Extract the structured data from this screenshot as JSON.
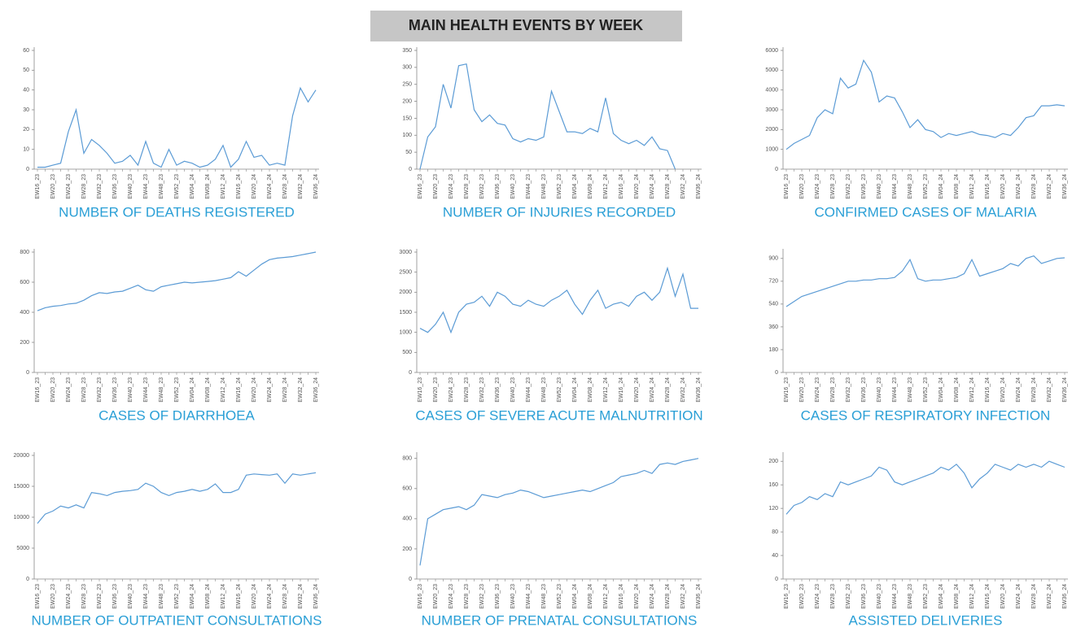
{
  "title": "MAIN HEALTH EVENTS BY WEEK",
  "chart_data": [
    {
      "type": "line",
      "title": "NUMBER OF DEATHS REGISTERED",
      "color": "#5b9bd5",
      "categories": [
        "EW16_23",
        null,
        "EW20_23",
        null,
        "EW24_23",
        null,
        "EW28_23",
        null,
        "EW32_23",
        null,
        "EW36_23",
        null,
        "EW40_23",
        null,
        "EW44_23",
        null,
        "EW48_23",
        null,
        "EW52_23",
        null,
        "EW04_24",
        null,
        "EW08_24",
        null,
        "EW12_24",
        null,
        "EW16_24",
        null,
        "EW20_24",
        null,
        "EW24_24",
        null,
        "EW28_24",
        null,
        "EW32_24",
        null,
        "EW36_24"
      ],
      "values": [
        1,
        1,
        2,
        3,
        19,
        30,
        8,
        15,
        12,
        8,
        3,
        4,
        7,
        2,
        14,
        3,
        1,
        10,
        2,
        4,
        3,
        1,
        2,
        5,
        12,
        1,
        5,
        14,
        6,
        7,
        2,
        3,
        2,
        27,
        41,
        34,
        40
      ],
      "ylim": [
        0,
        60
      ],
      "yticks": [
        0,
        10,
        20,
        30,
        40,
        50,
        60
      ]
    },
    {
      "type": "line",
      "title": "NUMBER OF INJURIES RECORDED",
      "color": "#5b9bd5",
      "categories": [
        "EW16_23",
        null,
        "EW20_23",
        null,
        "EW24_23",
        null,
        "EW28_23",
        null,
        "EW32_23",
        null,
        "EW36_23",
        null,
        "EW40_23",
        null,
        "EW44_23",
        null,
        "EW48_23",
        null,
        "EW52_23",
        null,
        "EW04_24",
        null,
        "EW08_24",
        null,
        "EW12_24",
        null,
        "EW16_24",
        null,
        "EW20_24",
        null,
        "EW24_24",
        null,
        "EW28_24",
        null,
        "EW32_24",
        null,
        "EW36_24"
      ],
      "values": [
        0,
        95,
        125,
        250,
        180,
        305,
        310,
        175,
        140,
        160,
        135,
        130,
        90,
        80,
        90,
        85,
        95,
        230,
        170,
        110,
        110,
        105,
        120,
        110,
        210,
        105,
        85,
        75,
        85,
        70,
        95,
        60,
        55,
        0,
        null,
        null,
        null
      ],
      "ylim": [
        0,
        350
      ],
      "yticks": [
        0,
        50,
        100,
        150,
        200,
        250,
        300,
        350
      ]
    },
    {
      "type": "line",
      "title": "CONFIRMED CASES OF MALARIA",
      "color": "#5b9bd5",
      "categories": [
        "EW16_23",
        null,
        "EW20_23",
        null,
        "EW24_23",
        null,
        "EW28_23",
        null,
        "EW32_23",
        null,
        "EW36_23",
        null,
        "EW40_23",
        null,
        "EW44_23",
        null,
        "EW48_23",
        null,
        "EW52_23",
        null,
        "EW04_24",
        null,
        "EW08_24",
        null,
        "EW12_24",
        null,
        "EW16_24",
        null,
        "EW20_24",
        null,
        "EW24_24",
        null,
        "EW28_24",
        null,
        "EW32_24",
        null,
        "EW36_24"
      ],
      "values": [
        1000,
        1300,
        1500,
        1700,
        2600,
        3000,
        2800,
        4600,
        4100,
        4300,
        5500,
        4900,
        3400,
        3700,
        3600,
        2900,
        2100,
        2500,
        2000,
        1900,
        1600,
        1800,
        1700,
        1800,
        1900,
        1750,
        1700,
        1600,
        1800,
        1700,
        2100,
        2600,
        2700,
        3200,
        3200,
        3250,
        3200
      ],
      "ylim": [
        0,
        6000
      ],
      "yticks": [
        0,
        1000,
        2000,
        3000,
        4000,
        5000,
        6000
      ]
    },
    {
      "type": "line",
      "title": "CASES OF DIARRHOEA",
      "color": "#5b9bd5",
      "categories": [
        "EW16_23",
        null,
        "EW20_23",
        null,
        "EW24_23",
        null,
        "EW28_23",
        null,
        "EW32_23",
        null,
        "EW36_23",
        null,
        "EW40_23",
        null,
        "EW44_23",
        null,
        "EW48_23",
        null,
        "EW52_23",
        null,
        "EW04_24",
        null,
        "EW08_24",
        null,
        "EW12_24",
        null,
        "EW16_24",
        null,
        "EW20_24",
        null,
        "EW24_24",
        null,
        "EW28_24",
        null,
        "EW32_24",
        null,
        "EW36_24"
      ],
      "values": [
        410,
        430,
        440,
        445,
        455,
        460,
        480,
        510,
        530,
        525,
        535,
        540,
        560,
        580,
        550,
        540,
        570,
        580,
        590,
        600,
        595,
        600,
        605,
        610,
        620,
        630,
        670,
        640,
        680,
        720,
        750,
        760,
        765,
        770,
        780,
        790,
        800
      ],
      "ylim": [
        0,
        800
      ],
      "yticks": [
        0,
        200,
        400,
        600,
        800
      ]
    },
    {
      "type": "line",
      "title": "CASES OF SEVERE ACUTE MALNUTRITION",
      "color": "#5b9bd5",
      "categories": [
        "EW16_23",
        null,
        "EW20_23",
        null,
        "EW24_23",
        null,
        "EW28_23",
        null,
        "EW32_23",
        null,
        "EW36_23",
        null,
        "EW40_23",
        null,
        "EW44_23",
        null,
        "EW48_23",
        null,
        "EW52_23",
        null,
        "EW04_24",
        null,
        "EW08_24",
        null,
        "EW12_24",
        null,
        "EW16_24",
        null,
        "EW20_24",
        null,
        "EW24_24",
        null,
        "EW28_24",
        null,
        "EW32_24",
        null,
        "EW36_24"
      ],
      "values": [
        1100,
        1000,
        1200,
        1500,
        1000,
        1500,
        1700,
        1750,
        1900,
        1650,
        2000,
        1900,
        1700,
        1650,
        1800,
        1700,
        1650,
        1800,
        1900,
        2050,
        1700,
        1450,
        1800,
        2050,
        1600,
        1700,
        1750,
        1650,
        1900,
        2000,
        1800,
        2000,
        2600,
        1900,
        2450,
        1600,
        1600
      ],
      "ylim": [
        0,
        3000
      ],
      "yticks": [
        0,
        500,
        1000,
        1500,
        2000,
        2500,
        3000
      ]
    },
    {
      "type": "line",
      "title": "CASES OF RESPIRATORY INFECTION",
      "color": "#5b9bd5",
      "categories": [
        "EW16_23",
        null,
        "EW20_23",
        null,
        "EW24_23",
        null,
        "EW28_23",
        null,
        "EW32_23",
        null,
        "EW36_23",
        null,
        "EW40_23",
        null,
        "EW44_23",
        null,
        "EW48_23",
        null,
        "EW52_23",
        null,
        "EW04_24",
        null,
        "EW08_24",
        null,
        "EW12_24",
        null,
        "EW16_24",
        null,
        "EW20_24",
        null,
        "EW24_24",
        null,
        "EW28_24",
        null,
        "EW32_24",
        null,
        "EW36_24"
      ],
      "values": [
        520,
        560,
        600,
        620,
        640,
        660,
        680,
        700,
        720,
        720,
        730,
        730,
        740,
        740,
        750,
        800,
        890,
        740,
        720,
        730,
        730,
        740,
        750,
        780,
        890,
        760,
        780,
        800,
        820,
        860,
        840,
        900,
        920,
        860,
        880,
        900,
        905
      ],
      "ylim": [
        0,
        950
      ],
      "yticks": [
        0,
        180,
        360,
        540,
        720,
        900
      ]
    },
    {
      "type": "line",
      "title": "NUMBER OF OUTPATIENT CONSULTATIONS",
      "color": "#5b9bd5",
      "categories": [
        "EW16_23",
        null,
        "EW20_23",
        null,
        "EW24_23",
        null,
        "EW28_23",
        null,
        "EW32_23",
        null,
        "EW36_23",
        null,
        "EW40_23",
        null,
        "EW44_23",
        null,
        "EW48_23",
        null,
        "EW52_23",
        null,
        "EW04_24",
        null,
        "EW08_24",
        null,
        "EW12_24",
        null,
        "EW16_24",
        null,
        "EW20_24",
        null,
        "EW24_24",
        null,
        "EW28_24",
        null,
        "EW32_24",
        null,
        "EW36_24"
      ],
      "values": [
        9000,
        10500,
        11000,
        11800,
        11500,
        12000,
        11500,
        14000,
        13800,
        13500,
        14000,
        14200,
        14300,
        14500,
        15500,
        15000,
        14000,
        13500,
        14000,
        14200,
        14500,
        14200,
        14500,
        15400,
        14000,
        14000,
        14500,
        16800,
        17000,
        16900,
        16800,
        17000,
        15500,
        17000,
        16800,
        17000,
        17200
      ],
      "ylim": [
        0,
        20000
      ],
      "yticks": [
        0,
        5000,
        10000,
        15000,
        20000
      ]
    },
    {
      "type": "line",
      "title": "NUMBER OF PRENATAL CONSULTATIONS",
      "color": "#5b9bd5",
      "categories": [
        "EW16_23",
        null,
        "EW20_23",
        null,
        "EW24_23",
        null,
        "EW28_23",
        null,
        "EW32_23",
        null,
        "EW36_23",
        null,
        "EW40_23",
        null,
        "EW44_23",
        null,
        "EW48_23",
        null,
        "EW52_23",
        null,
        "EW04_24",
        null,
        "EW08_24",
        null,
        "EW12_24",
        null,
        "EW16_24",
        null,
        "EW20_24",
        null,
        "EW24_24",
        null,
        "EW28_24",
        null,
        "EW32_24",
        null,
        "EW36_24"
      ],
      "values": [
        90,
        400,
        430,
        460,
        470,
        480,
        460,
        490,
        560,
        550,
        540,
        560,
        570,
        590,
        580,
        560,
        540,
        550,
        560,
        570,
        580,
        590,
        580,
        600,
        620,
        640,
        680,
        690,
        700,
        720,
        700,
        760,
        770,
        760,
        780,
        790,
        800
      ],
      "ylim": [
        0,
        820
      ],
      "yticks": [
        0,
        200,
        400,
        600,
        800
      ]
    },
    {
      "type": "line",
      "title": "ASSISTED DELIVERIES",
      "color": "#5b9bd5",
      "categories": [
        "EW16_23",
        null,
        "EW20_23",
        null,
        "EW24_23",
        null,
        "EW28_23",
        null,
        "EW32_23",
        null,
        "EW36_23",
        null,
        "EW40_23",
        null,
        "EW44_23",
        null,
        "EW48_23",
        null,
        "EW52_23",
        null,
        "EW04_24",
        null,
        "EW08_24",
        null,
        "EW12_24",
        null,
        "EW16_24",
        null,
        "EW20_24",
        null,
        "EW24_24",
        null,
        "EW28_24",
        null,
        "EW32_24",
        null,
        "EW36_24"
      ],
      "values": [
        110,
        125,
        130,
        140,
        135,
        145,
        140,
        165,
        160,
        165,
        170,
        175,
        190,
        185,
        165,
        160,
        165,
        170,
        175,
        180,
        190,
        185,
        195,
        180,
        155,
        170,
        180,
        195,
        190,
        185,
        195,
        190,
        195,
        190,
        200,
        195,
        190
      ],
      "ylim": [
        0,
        210
      ],
      "yticks": [
        0,
        40,
        80,
        120,
        160,
        200
      ]
    }
  ]
}
